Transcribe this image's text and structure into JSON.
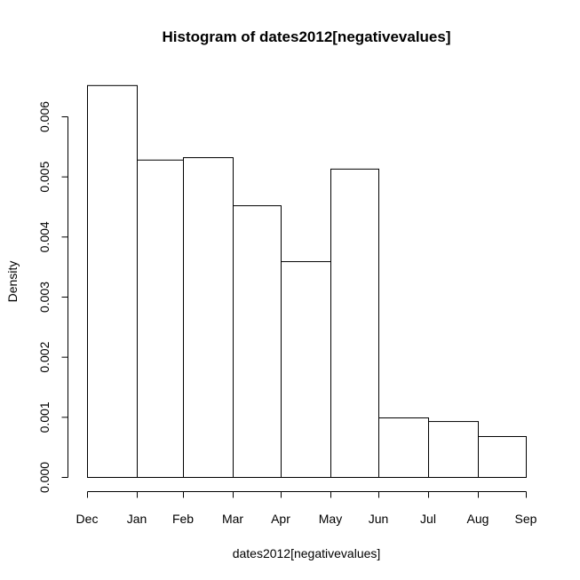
{
  "chart_data": {
    "type": "bar",
    "title": "Histogram of dates2012[negativevalues]",
    "xlabel": "dates2012[negativevalues]",
    "ylabel": "Density",
    "x_ticks": [
      "Dec",
      "Jan",
      "Feb",
      "Mar",
      "Apr",
      "May",
      "Jun",
      "Jul",
      "Aug",
      "Sep"
    ],
    "y_ticks": [
      "0.000",
      "0.001",
      "0.002",
      "0.003",
      "0.004",
      "0.005",
      "0.006"
    ],
    "ylim": [
      0,
      0.0065
    ],
    "bins": [
      {
        "from": "Dec",
        "to": "Jan",
        "density": 0.00652
      },
      {
        "from": "Jan",
        "to": "Feb",
        "density": 0.00528
      },
      {
        "from": "Feb",
        "to": "Mar",
        "density": 0.00532
      },
      {
        "from": "Mar",
        "to": "Apr",
        "density": 0.00452
      },
      {
        "from": "Apr",
        "to": "May",
        "density": 0.00359
      },
      {
        "from": "May",
        "to": "Jun",
        "density": 0.00513
      },
      {
        "from": "Jun",
        "to": "Jul",
        "density": 0.00099
      },
      {
        "from": "Jul",
        "to": "Aug",
        "density": 0.00093
      },
      {
        "from": "Aug",
        "to": "Sep",
        "density": 0.00068
      }
    ],
    "grid": false,
    "legend": "none"
  }
}
